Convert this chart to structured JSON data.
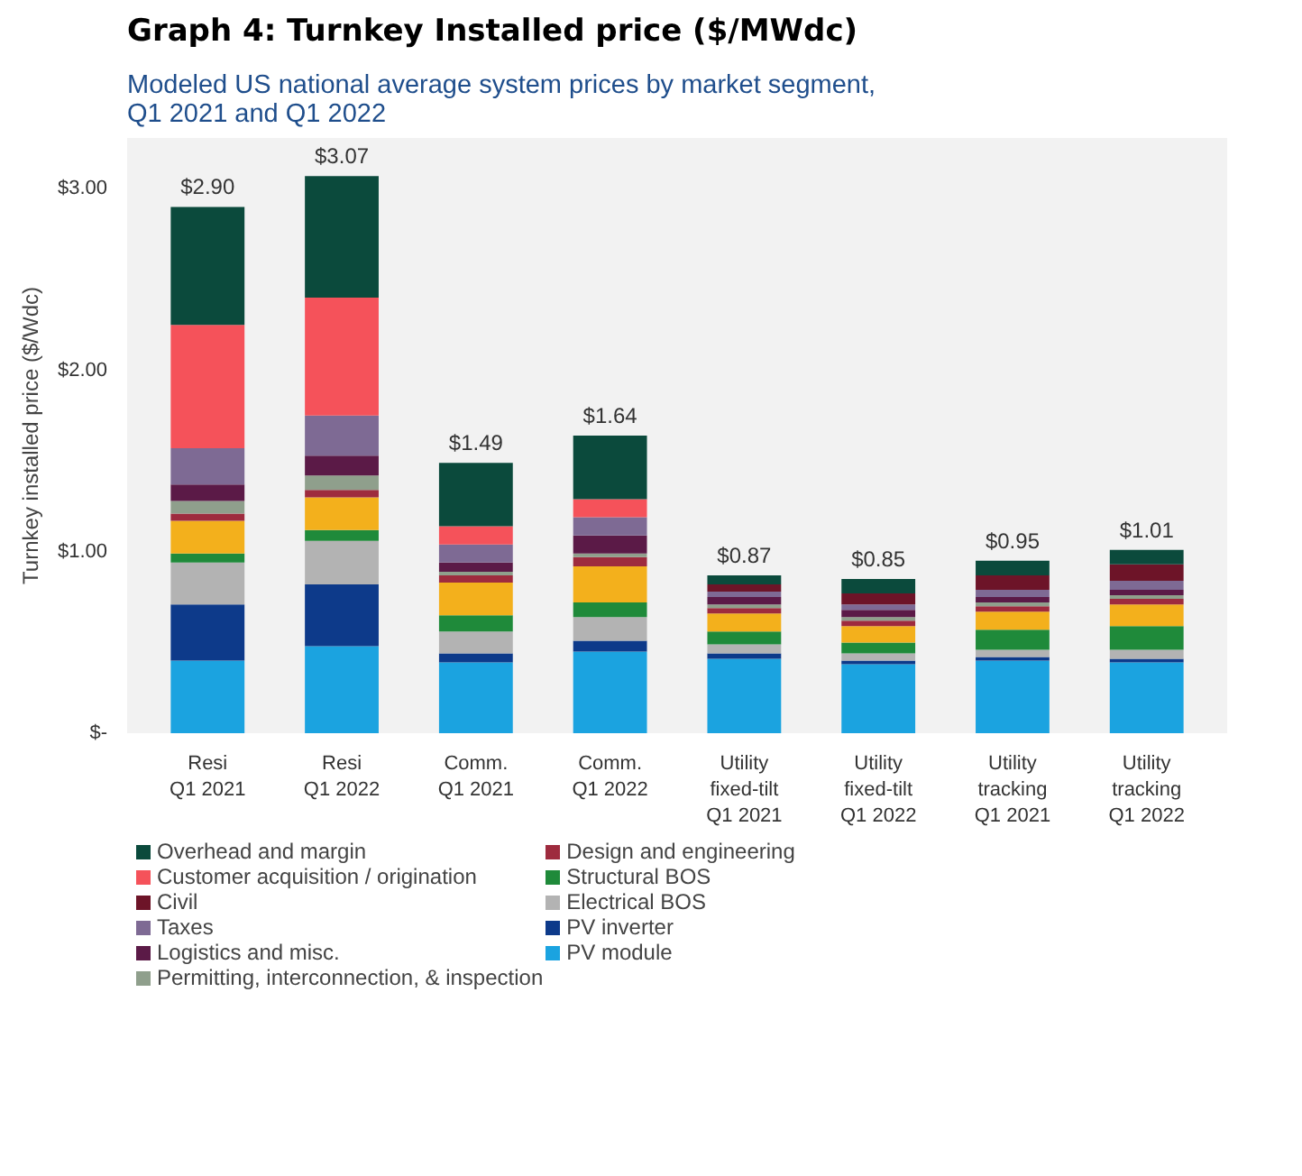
{
  "chart_data": {
    "type": "bar",
    "stacked": true,
    "title": "Graph 4: Turnkey Installed price ($/MWdc)",
    "subtitle": "Modeled US national average system prices by market segment,\nQ1 2021 and Q1 2022",
    "ylabel": "Turnkey installed price ($/Wdc)",
    "categories": [
      "Resi\nQ1 2021",
      "Resi\nQ1 2022",
      "Comm.\nQ1 2021",
      "Comm.\nQ1 2022",
      "Utility\nfixed-tilt\nQ1 2021",
      "Utility\nfixed-tilt\nQ1 2022",
      "Utility\ntracking\nQ1 2021",
      "Utility\ntracking\nQ1 2022"
    ],
    "ylim": [
      0,
      3.28
    ],
    "yticks": [
      {
        "value": 0,
        "label": "$-"
      },
      {
        "value": 1,
        "label": "$1.00"
      },
      {
        "value": 2,
        "label": "$2.00"
      },
      {
        "value": 3,
        "label": "$3.00"
      }
    ],
    "grid": false,
    "legend": "bottom",
    "totals": [
      "$2.90",
      "$3.07",
      "$1.49",
      "$1.64",
      "$0.87",
      "$0.85",
      "$0.95",
      "$1.01"
    ],
    "series": [
      {
        "name": "PV module",
        "color": "#1ba3e0",
        "values": [
          0.4,
          0.48,
          0.39,
          0.45,
          0.41,
          0.38,
          0.4,
          0.39
        ]
      },
      {
        "name": "PV inverter",
        "color": "#0d3a8a",
        "values": [
          0.31,
          0.34,
          0.05,
          0.06,
          0.03,
          0.02,
          0.02,
          0.02
        ]
      },
      {
        "name": "Electrical BOS",
        "color": "#b3b3b3",
        "values": [
          0.23,
          0.24,
          0.12,
          0.13,
          0.05,
          0.04,
          0.04,
          0.05
        ]
      },
      {
        "name": "Structural BOS",
        "color": "#1f8a3a",
        "values": [
          0.05,
          0.06,
          0.09,
          0.08,
          0.07,
          0.06,
          0.11,
          0.13
        ]
      },
      {
        "color": "#f3b01c",
        "values": [
          0.18,
          0.18,
          0.18,
          0.2,
          0.1,
          0.09,
          0.1,
          0.12
        ]
      },
      {
        "name": "Design and engineering",
        "color": "#9e2b3e",
        "values": [
          0.04,
          0.04,
          0.04,
          0.05,
          0.03,
          0.03,
          0.03,
          0.03
        ]
      },
      {
        "name": "Permitting, interconnection, & inspection",
        "color": "#8f9f8c",
        "values": [
          0.07,
          0.08,
          0.02,
          0.02,
          0.02,
          0.02,
          0.02,
          0.02
        ]
      },
      {
        "name": "Logistics and misc.",
        "color": "#5b1a47",
        "values": [
          0.09,
          0.11,
          0.05,
          0.1,
          0.04,
          0.04,
          0.03,
          0.03
        ]
      },
      {
        "name": "Taxes",
        "color": "#7e6a94",
        "values": [
          0.2,
          0.22,
          0.1,
          0.1,
          0.03,
          0.03,
          0.04,
          0.05
        ]
      },
      {
        "name": "Civil",
        "color": "#6d1428",
        "values": [
          null,
          null,
          null,
          null,
          0.04,
          0.06,
          0.08,
          0.09
        ]
      },
      {
        "name": "Customer acquisition / origination",
        "color": "#f5525a",
        "values": [
          0.68,
          0.65,
          0.1,
          0.1,
          null,
          null,
          null,
          null
        ]
      },
      {
        "name": "Overhead and margin",
        "color": "#0b4a3c",
        "values": [
          0.65,
          0.67,
          0.35,
          0.35,
          0.05,
          0.08,
          0.08,
          0.08
        ]
      }
    ]
  }
}
